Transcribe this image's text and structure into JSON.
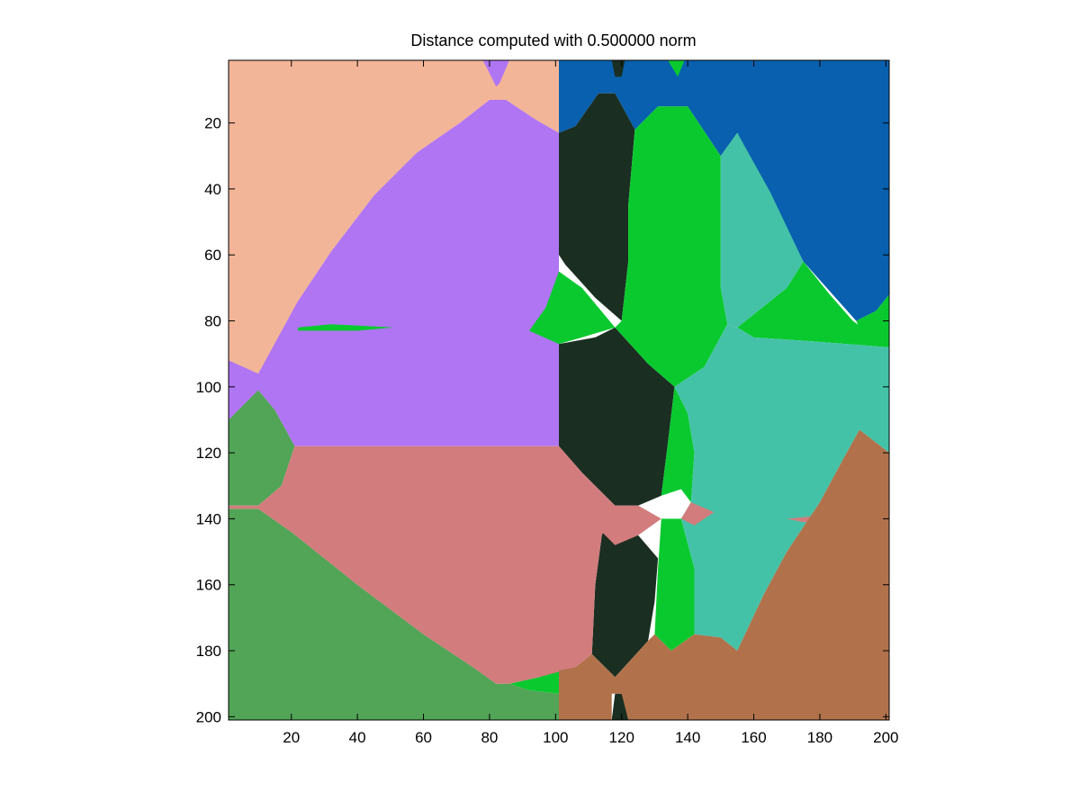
{
  "chart_data": {
    "type": "heatmap",
    "title": "Distance computed with 0.500000 norm",
    "xlabel": "",
    "ylabel": "",
    "xlim": [
      1,
      201
    ],
    "ylim": [
      201,
      1
    ],
    "y_axis_direction": "top-to-bottom",
    "grid": false,
    "legend": "none",
    "x_ticks": [
      20,
      40,
      60,
      80,
      100,
      120,
      140,
      160,
      180,
      200
    ],
    "y_ticks": [
      20,
      40,
      60,
      80,
      100,
      120,
      140,
      160,
      180,
      200
    ],
    "colors": {
      "peach": "#f3b597",
      "purple": "#b075f3",
      "navy": "#0860ae",
      "dark": "#1a2e21",
      "green": "#0ac92f",
      "teal": "#44c2a7",
      "darkgreen": "#52a457",
      "rose": "#d27c7d",
      "brown": "#b1724b"
    },
    "regions": [
      {
        "color": "peach",
        "polygon": [
          [
            1,
            1
          ],
          [
            80,
            1
          ],
          [
            82,
            5
          ],
          [
            84,
            1
          ],
          [
            101,
            1
          ],
          [
            101,
            23
          ],
          [
            94,
            19
          ],
          [
            85,
            13
          ],
          [
            80,
            13
          ],
          [
            71,
            20
          ],
          [
            58,
            29
          ],
          [
            45,
            42
          ],
          [
            32,
            59
          ],
          [
            22,
            74
          ],
          [
            10,
            96
          ],
          [
            1,
            92
          ]
        ]
      },
      {
        "color": "purple",
        "polygon": [
          [
            78,
            1
          ],
          [
            86,
            1
          ],
          [
            83,
            8
          ],
          [
            82,
            9
          ]
        ]
      },
      {
        "color": "purple",
        "polygon": [
          [
            101,
            23
          ],
          [
            94,
            19
          ],
          [
            85,
            13
          ],
          [
            80,
            13
          ],
          [
            71,
            20
          ],
          [
            58,
            29
          ],
          [
            45,
            42
          ],
          [
            32,
            59
          ],
          [
            22,
            74
          ],
          [
            10,
            96
          ],
          [
            10,
            101
          ],
          [
            1,
            110
          ],
          [
            1,
            92
          ],
          [
            10,
            96
          ],
          [
            10,
            101
          ],
          [
            15,
            107
          ],
          [
            21,
            118
          ],
          [
            101,
            118
          ]
        ]
      },
      {
        "color": "purple",
        "polygon": [
          [
            22,
            74
          ],
          [
            10,
            96
          ],
          [
            1,
            92
          ],
          [
            1,
            110
          ],
          [
            10,
            101
          ]
        ]
      },
      {
        "color": "navy",
        "polygon": [
          [
            101,
            1
          ],
          [
            201,
            1
          ],
          [
            201,
            72
          ],
          [
            197,
            77
          ],
          [
            191,
            80
          ],
          [
            175,
            62
          ],
          [
            155,
            23
          ],
          [
            150,
            30
          ],
          [
            140,
            15
          ],
          [
            131,
            15
          ],
          [
            124,
            22
          ],
          [
            118,
            11
          ],
          [
            113,
            11
          ],
          [
            106,
            21
          ],
          [
            101,
            23
          ]
        ]
      },
      {
        "color": "dark",
        "polygon": [
          [
            117,
            1
          ],
          [
            121,
            1
          ],
          [
            120,
            6
          ],
          [
            118,
            6
          ]
        ]
      },
      {
        "color": "dark",
        "polygon": [
          [
            106,
            21
          ],
          [
            113,
            11
          ],
          [
            118,
            11
          ],
          [
            124,
            22
          ],
          [
            122,
            45
          ],
          [
            122,
            62
          ],
          [
            120,
            80
          ],
          [
            112,
            73
          ],
          [
            103,
            63
          ],
          [
            101,
            60
          ],
          [
            101,
            23
          ]
        ]
      },
      {
        "color": "dark",
        "polygon": [
          [
            101,
            87
          ],
          [
            112,
            85
          ],
          [
            118,
            82
          ],
          [
            128,
            93
          ],
          [
            136,
            100
          ],
          [
            134,
            117
          ],
          [
            132,
            133
          ],
          [
            125,
            136
          ],
          [
            118,
            136
          ],
          [
            108,
            126
          ],
          [
            101,
            118
          ]
        ]
      },
      {
        "color": "dark",
        "polygon": [
          [
            118,
            136
          ],
          [
            125,
            145
          ],
          [
            131,
            152
          ],
          [
            130,
            165
          ],
          [
            128,
            177
          ],
          [
            118,
            188
          ],
          [
            111,
            181
          ],
          [
            112,
            160
          ],
          [
            114,
            145
          ]
        ]
      },
      {
        "color": "dark",
        "polygon": [
          [
            118,
            193
          ],
          [
            121,
            193
          ],
          [
            122,
            201
          ],
          [
            117,
            201
          ]
        ]
      },
      {
        "color": "green",
        "polygon": [
          [
            134,
            1
          ],
          [
            139,
            1
          ],
          [
            137,
            6
          ]
        ]
      },
      {
        "color": "green",
        "polygon": [
          [
            124,
            22
          ],
          [
            131,
            15
          ],
          [
            140,
            15
          ],
          [
            150,
            30
          ],
          [
            150,
            70
          ],
          [
            152,
            81
          ],
          [
            145,
            94
          ],
          [
            136,
            100
          ],
          [
            128,
            93
          ],
          [
            118,
            82
          ],
          [
            120,
            80
          ],
          [
            122,
            62
          ],
          [
            122,
            45
          ]
        ]
      },
      {
        "color": "green",
        "polygon": [
          [
            101,
            65
          ],
          [
            108,
            70
          ],
          [
            118,
            82
          ],
          [
            108,
            85
          ],
          [
            101,
            87
          ],
          [
            92,
            83
          ],
          [
            97,
            76
          ]
        ]
      },
      {
        "color": "green",
        "polygon": [
          [
            22,
            82
          ],
          [
            32,
            81
          ],
          [
            51,
            82
          ],
          [
            40,
            83
          ],
          [
            22,
            83
          ]
        ]
      },
      {
        "color": "green",
        "polygon": [
          [
            155,
            82
          ],
          [
            170,
            70
          ],
          [
            175,
            62
          ],
          [
            183,
            72
          ],
          [
            190,
            80
          ],
          [
            201,
            88
          ],
          [
            175,
            86
          ],
          [
            160,
            85
          ]
        ]
      },
      {
        "color": "green",
        "polygon": [
          [
            191,
            80
          ],
          [
            197,
            77
          ],
          [
            201,
            72
          ],
          [
            201,
            88
          ],
          [
            193,
            84
          ]
        ]
      },
      {
        "color": "green",
        "polygon": [
          [
            136,
            100
          ],
          [
            140,
            108
          ],
          [
            142,
            120
          ],
          [
            141,
            135
          ],
          [
            138,
            131
          ],
          [
            132,
            133
          ],
          [
            134,
            117
          ]
        ]
      },
      {
        "color": "green",
        "polygon": [
          [
            132,
            140
          ],
          [
            138,
            140
          ],
          [
            142,
            155
          ],
          [
            142,
            175
          ],
          [
            135,
            180
          ],
          [
            130,
            175
          ],
          [
            131,
            155
          ]
        ]
      },
      {
        "color": "green",
        "polygon": [
          [
            86,
            190
          ],
          [
            95,
            188
          ],
          [
            101,
            186
          ],
          [
            101,
            193
          ],
          [
            92,
            192
          ]
        ]
      },
      {
        "color": "teal",
        "polygon": [
          [
            150,
            30
          ],
          [
            155,
            23
          ],
          [
            165,
            41
          ],
          [
            175,
            62
          ],
          [
            170,
            70
          ],
          [
            155,
            82
          ],
          [
            152,
            81
          ],
          [
            150,
            70
          ]
        ]
      },
      {
        "color": "teal",
        "polygon": [
          [
            152,
            81
          ],
          [
            155,
            82
          ],
          [
            160,
            85
          ],
          [
            175,
            86
          ],
          [
            201,
            88
          ],
          [
            201,
            120
          ],
          [
            192,
            113
          ],
          [
            187,
            122
          ],
          [
            180,
            135
          ],
          [
            170,
            150
          ],
          [
            163,
            163
          ],
          [
            155,
            180
          ],
          [
            150,
            176
          ],
          [
            142,
            175
          ],
          [
            142,
            155
          ],
          [
            138,
            140
          ],
          [
            141,
            135
          ],
          [
            142,
            120
          ],
          [
            140,
            108
          ],
          [
            136,
            100
          ],
          [
            145,
            94
          ]
        ]
      },
      {
        "color": "darkgreen",
        "polygon": [
          [
            1,
            110
          ],
          [
            10,
            101
          ],
          [
            15,
            107
          ],
          [
            21,
            118
          ],
          [
            17,
            130
          ],
          [
            10,
            136
          ],
          [
            1,
            136
          ]
        ]
      },
      {
        "color": "darkgreen",
        "polygon": [
          [
            1,
            137
          ],
          [
            10,
            137
          ],
          [
            20,
            144
          ],
          [
            40,
            160
          ],
          [
            60,
            175
          ],
          [
            75,
            185
          ],
          [
            82,
            190
          ],
          [
            86,
            190
          ],
          [
            92,
            192
          ],
          [
            101,
            193
          ],
          [
            101,
            201
          ],
          [
            74,
            201
          ],
          [
            1,
            201
          ]
        ]
      },
      {
        "color": "rose",
        "polygon": [
          [
            21,
            118
          ],
          [
            101,
            118
          ],
          [
            108,
            126
          ],
          [
            118,
            136
          ],
          [
            114,
            145
          ],
          [
            112,
            160
          ],
          [
            111,
            181
          ],
          [
            106,
            185
          ],
          [
            95,
            188
          ],
          [
            86,
            190
          ],
          [
            82,
            190
          ],
          [
            75,
            185
          ],
          [
            60,
            175
          ],
          [
            40,
            160
          ],
          [
            20,
            144
          ],
          [
            10,
            137
          ],
          [
            1,
            137
          ],
          [
            1,
            136
          ],
          [
            10,
            136
          ],
          [
            17,
            130
          ]
        ]
      },
      {
        "color": "rose",
        "polygon": [
          [
            112,
            142
          ],
          [
            118,
            136
          ],
          [
            125,
            136
          ],
          [
            132,
            140
          ],
          [
            125,
            145
          ],
          [
            118,
            148
          ]
        ]
      },
      {
        "color": "rose",
        "polygon": [
          [
            138,
            140
          ],
          [
            141,
            135
          ],
          [
            148,
            138
          ],
          [
            142,
            142
          ]
        ]
      },
      {
        "color": "rose",
        "polygon": [
          [
            170,
            140
          ],
          [
            180,
            139
          ],
          [
            187,
            141
          ],
          [
            175,
            141
          ]
        ]
      },
      {
        "color": "brown",
        "polygon": [
          [
            101,
            186
          ],
          [
            106,
            185
          ],
          [
            111,
            181
          ],
          [
            118,
            188
          ],
          [
            128,
            177
          ],
          [
            130,
            175
          ],
          [
            135,
            180
          ],
          [
            142,
            175
          ],
          [
            150,
            176
          ],
          [
            155,
            180
          ],
          [
            163,
            163
          ],
          [
            170,
            150
          ],
          [
            180,
            135
          ],
          [
            187,
            122
          ],
          [
            192,
            113
          ],
          [
            201,
            120
          ],
          [
            201,
            201
          ],
          [
            122,
            201
          ],
          [
            120,
            193
          ],
          [
            117,
            193
          ],
          [
            117,
            201
          ],
          [
            101,
            201
          ]
        ]
      }
    ]
  }
}
